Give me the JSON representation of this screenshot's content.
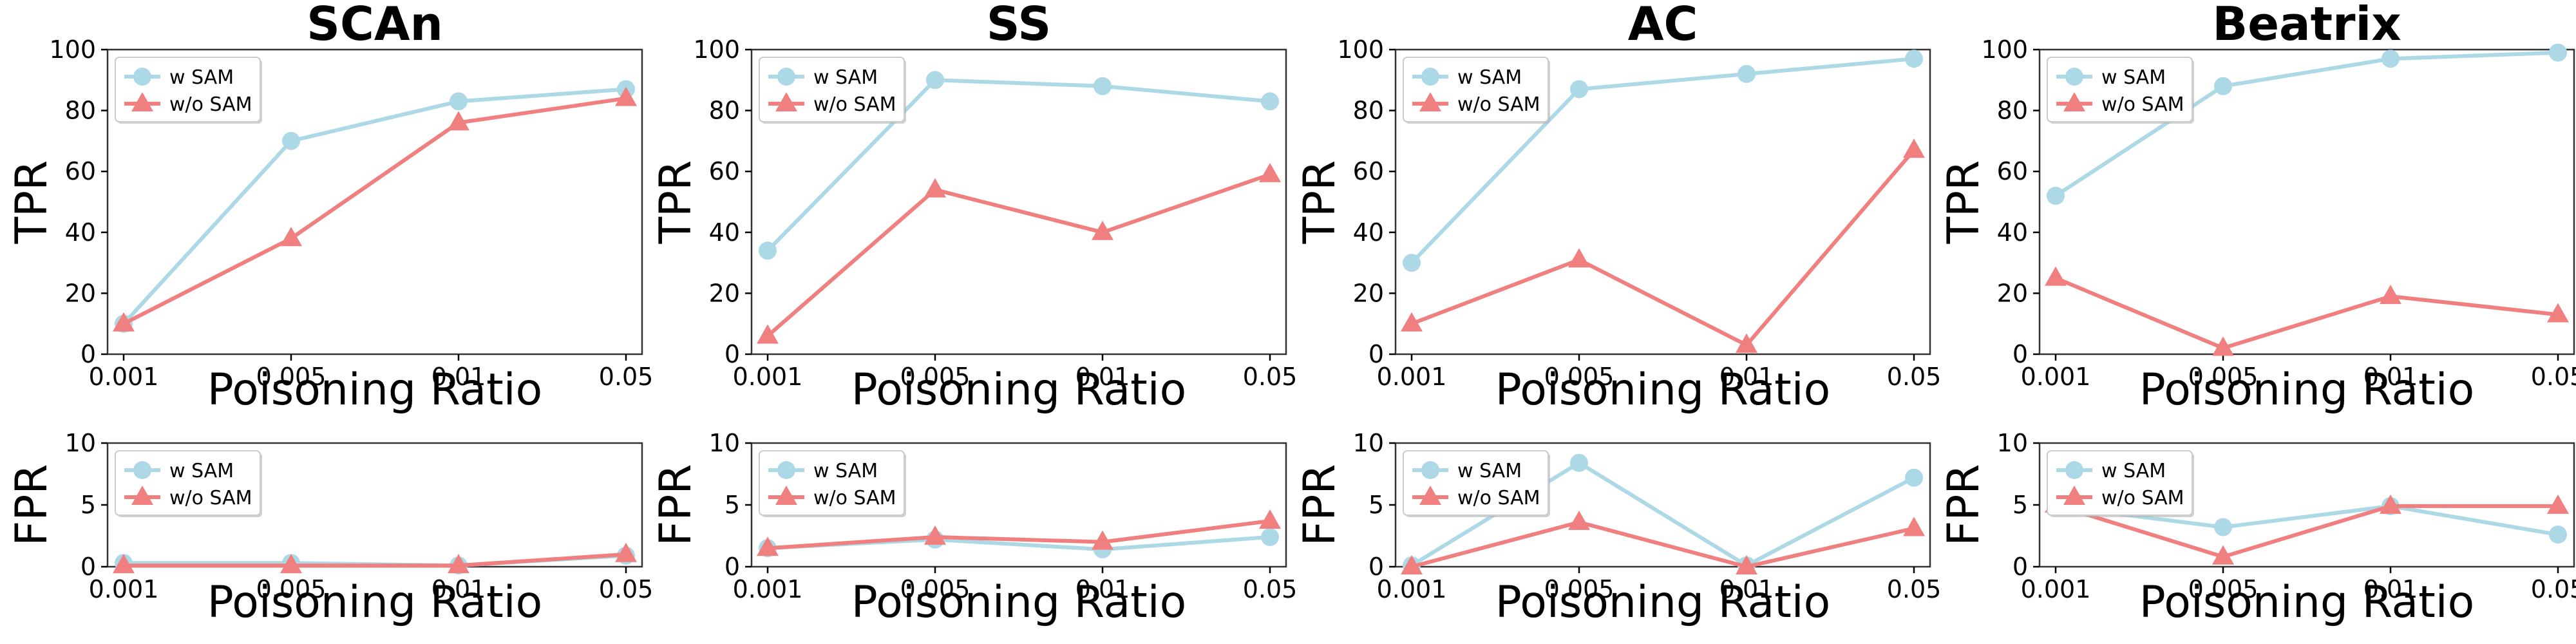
{
  "colors": {
    "w_sam": "#add8e6",
    "wo_sam": "#f08080"
  },
  "legend": {
    "w_sam_label": "w SAM",
    "wo_sam_label": "w/o SAM"
  },
  "chart_data": [
    {
      "type": "line",
      "panel": "SCAn-TPR",
      "title": "SCAn",
      "xlabel": "Poisoning Ratio",
      "ylabel": "TPR",
      "categories": [
        "0.001",
        "0.005",
        "0.01",
        "0.05"
      ],
      "ylim": [
        0,
        100
      ],
      "yticks": [
        0,
        20,
        40,
        60,
        80,
        100
      ],
      "series": [
        {
          "name": "w SAM",
          "values": [
            10,
            70,
            83,
            87
          ]
        },
        {
          "name": "w/o SAM",
          "values": [
            10,
            38,
            76,
            84
          ]
        }
      ]
    },
    {
      "type": "line",
      "panel": "SS-TPR",
      "title": "SS",
      "xlabel": "Poisoning Ratio",
      "ylabel": "TPR",
      "categories": [
        "0.001",
        "0.005",
        "0.01",
        "0.05"
      ],
      "ylim": [
        0,
        100
      ],
      "yticks": [
        0,
        20,
        40,
        60,
        80,
        100
      ],
      "series": [
        {
          "name": "w SAM",
          "values": [
            34,
            90,
            88,
            83
          ]
        },
        {
          "name": "w/o SAM",
          "values": [
            6,
            54,
            40,
            59
          ]
        }
      ]
    },
    {
      "type": "line",
      "panel": "AC-TPR",
      "title": "AC",
      "xlabel": "Poisoning Ratio",
      "ylabel": "TPR",
      "categories": [
        "0.001",
        "0.005",
        "0.01",
        "0.05"
      ],
      "ylim": [
        0,
        100
      ],
      "yticks": [
        0,
        20,
        40,
        60,
        80,
        100
      ],
      "series": [
        {
          "name": "w SAM",
          "values": [
            30,
            87,
            92,
            97
          ]
        },
        {
          "name": "w/o SAM",
          "values": [
            10,
            31,
            3,
            67
          ]
        }
      ]
    },
    {
      "type": "line",
      "panel": "Beatrix-TPR",
      "title": "Beatrix",
      "xlabel": "Poisoning Ratio",
      "ylabel": "TPR",
      "categories": [
        "0.001",
        "0.005",
        "0.01",
        "0.05"
      ],
      "ylim": [
        0,
        100
      ],
      "yticks": [
        0,
        20,
        40,
        60,
        80,
        100
      ],
      "series": [
        {
          "name": "w SAM",
          "values": [
            52,
            88,
            97,
            99
          ]
        },
        {
          "name": "w/o SAM",
          "values": [
            25,
            2,
            19,
            13
          ]
        }
      ]
    },
    {
      "type": "line",
      "panel": "SCAn-FPR",
      "title": "",
      "xlabel": "Poisoning Ratio",
      "ylabel": "FPR",
      "categories": [
        "0.001",
        "0.005",
        "0.01",
        "0.05"
      ],
      "ylim": [
        0,
        10
      ],
      "yticks": [
        0,
        5,
        10
      ],
      "series": [
        {
          "name": "w SAM",
          "values": [
            0.3,
            0.3,
            0.1,
            0.9
          ]
        },
        {
          "name": "w/o SAM",
          "values": [
            0.1,
            0.1,
            0.1,
            1.0
          ]
        }
      ]
    },
    {
      "type": "line",
      "panel": "SS-FPR",
      "title": "",
      "xlabel": "Poisoning Ratio",
      "ylabel": "FPR",
      "categories": [
        "0.001",
        "0.005",
        "0.01",
        "0.05"
      ],
      "ylim": [
        0,
        10
      ],
      "yticks": [
        0,
        5,
        10
      ],
      "series": [
        {
          "name": "w SAM",
          "values": [
            1.5,
            2.2,
            1.4,
            2.4
          ]
        },
        {
          "name": "w/o SAM",
          "values": [
            1.5,
            2.4,
            2.0,
            3.7
          ]
        }
      ]
    },
    {
      "type": "line",
      "panel": "AC-FPR",
      "title": "",
      "xlabel": "Poisoning Ratio",
      "ylabel": "FPR",
      "categories": [
        "0.001",
        "0.005",
        "0.01",
        "0.05"
      ],
      "ylim": [
        0,
        10
      ],
      "yticks": [
        0,
        5,
        10
      ],
      "series": [
        {
          "name": "w SAM",
          "values": [
            0.1,
            8.4,
            0.1,
            7.2
          ]
        },
        {
          "name": "w/o SAM",
          "values": [
            0,
            3.6,
            0,
            3.1
          ]
        }
      ]
    },
    {
      "type": "line",
      "panel": "Beatrix-FPR",
      "title": "",
      "xlabel": "Poisoning Ratio",
      "ylabel": "FPR",
      "categories": [
        "0.001",
        "0.005",
        "0.01",
        "0.05"
      ],
      "ylim": [
        0,
        10
      ],
      "yticks": [
        0,
        5,
        10
      ],
      "series": [
        {
          "name": "w SAM",
          "values": [
            4.9,
            3.2,
            4.9,
            2.6
          ]
        },
        {
          "name": "w/o SAM",
          "values": [
            5.0,
            0.8,
            4.9,
            4.9
          ]
        }
      ]
    }
  ]
}
